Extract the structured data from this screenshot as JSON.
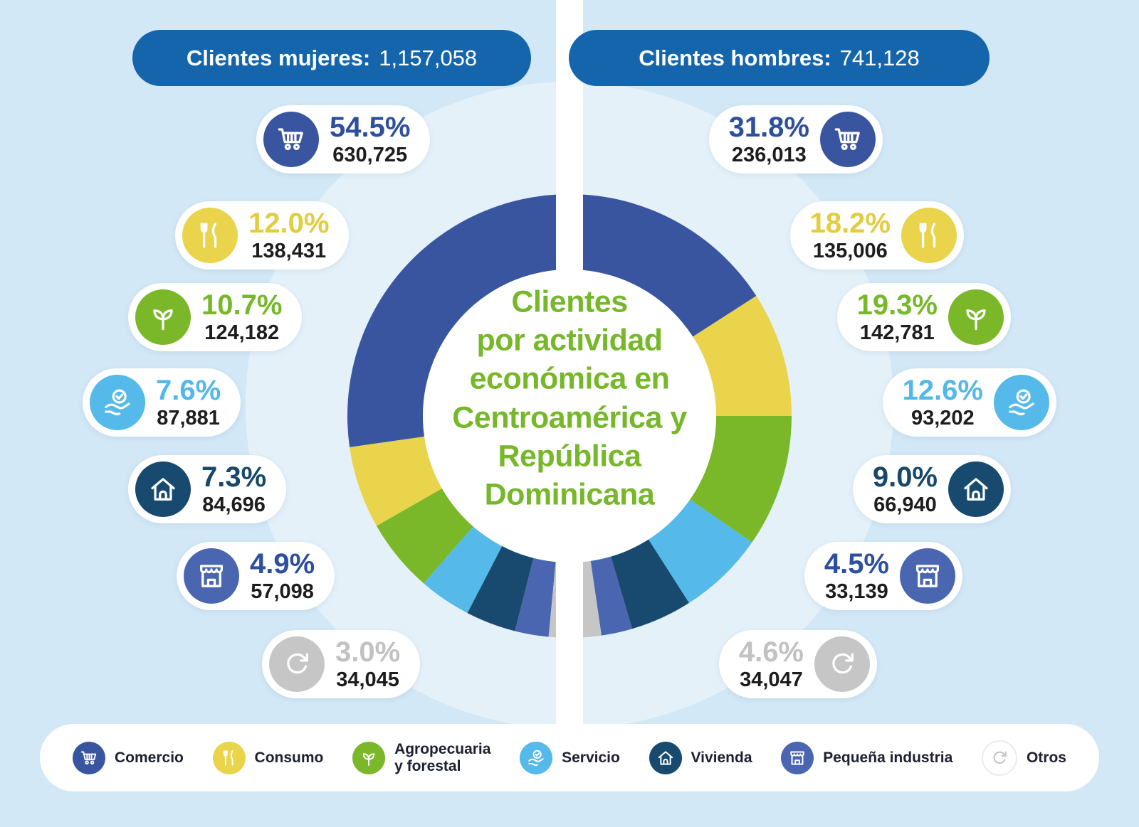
{
  "colors": {
    "background": "#d3e8f6",
    "header_bg": "#1565ad",
    "center_title_green": "#76b82a",
    "comercio": "#3a55a0",
    "consumo": "#e9d44b",
    "agropecuaria": "#7ab829",
    "servicio": "#55b9e9",
    "vivienda": "#174a6e",
    "pequena_industria": "#4a66b0",
    "otros": "#c6c6c6"
  },
  "headers": {
    "women": {
      "label": "Clientes mujeres:",
      "value": "1,157,058"
    },
    "men": {
      "label": "Clientes hombres:",
      "value": "741,128"
    }
  },
  "center_title": "Clientes\npor actividad\neconómica en\nCentroamérica y\nRepública\nDominicana",
  "pills": {
    "women": [
      {
        "category": "Comercio",
        "icon": "cart-icon",
        "pct": "54.5%",
        "value": "630,725"
      },
      {
        "category": "Consumo",
        "icon": "cutlery-icon",
        "pct": "12.0%",
        "value": "138,431"
      },
      {
        "category": "Agropecuaria y forestal",
        "icon": "plant-icon",
        "pct": "10.7%",
        "value": "124,182"
      },
      {
        "category": "Servicio",
        "icon": "hand-check-icon",
        "pct": "7.6%",
        "value": "87,881"
      },
      {
        "category": "Vivienda",
        "icon": "house-icon",
        "pct": "7.3%",
        "value": "84,696"
      },
      {
        "category": "Pequeña industria",
        "icon": "store-icon",
        "pct": "4.9%",
        "value": "57,098"
      },
      {
        "category": "Otros",
        "icon": "refresh-icon",
        "pct": "3.0%",
        "value": "34,045"
      }
    ],
    "men": [
      {
        "category": "Comercio",
        "icon": "cart-icon",
        "pct": "31.8%",
        "value": "236,013"
      },
      {
        "category": "Consumo",
        "icon": "cutlery-icon",
        "pct": "18.2%",
        "value": "135,006"
      },
      {
        "category": "Agropecuaria y forestal",
        "icon": "plant-icon",
        "pct": "19.3%",
        "value": "142,781"
      },
      {
        "category": "Servicio",
        "icon": "hand-check-icon",
        "pct": "12.6%",
        "value": "93,202"
      },
      {
        "category": "Vivienda",
        "icon": "house-icon",
        "pct": "9.0%",
        "value": "66,940"
      },
      {
        "category": "Pequeña industria",
        "icon": "store-icon",
        "pct": "4.5%",
        "value": "33,139"
      },
      {
        "category": "Otros",
        "icon": "refresh-icon",
        "pct": "4.6%",
        "value": "34,047"
      }
    ]
  },
  "legend": [
    {
      "label": "Comercio",
      "icon": "cart-icon"
    },
    {
      "label": "Consumo",
      "icon": "cutlery-icon"
    },
    {
      "label": "Agropecuaria\ny forestal",
      "icon": "plant-icon"
    },
    {
      "label": "Servicio",
      "icon": "hand-check-icon"
    },
    {
      "label": "Vivienda",
      "icon": "house-icon"
    },
    {
      "label": "Pequeña industria",
      "icon": "store-icon"
    },
    {
      "label": "Otros",
      "icon": "refresh-icon"
    }
  ],
  "chart_data": {
    "type": "pie",
    "subtype": "double-half-donut",
    "title": "Clientes por actividad económica en Centroamérica y República Dominicana",
    "categories": [
      "Comercio",
      "Consumo",
      "Agropecuaria y forestal",
      "Servicio",
      "Vivienda",
      "Pequeña industria",
      "Otros"
    ],
    "colors": [
      "#3a55a0",
      "#e9d44b",
      "#7ab829",
      "#55b9e9",
      "#174a6e",
      "#4a66b0",
      "#c6c6c6"
    ],
    "series": [
      {
        "name": "Clientes mujeres",
        "side": "left",
        "total": 1157058,
        "pct": [
          54.5,
          12.0,
          10.7,
          7.6,
          7.3,
          4.9,
          3.0
        ],
        "values": [
          630725,
          138431,
          124182,
          87881,
          84696,
          57098,
          34045
        ]
      },
      {
        "name": "Clientes hombres",
        "side": "right",
        "total": 741128,
        "pct": [
          31.8,
          18.2,
          19.3,
          12.6,
          9.0,
          4.5,
          4.6
        ],
        "values": [
          236013,
          135006,
          142781,
          93202,
          66940,
          33139,
          34047
        ]
      }
    ],
    "legend_position": "bottom"
  }
}
